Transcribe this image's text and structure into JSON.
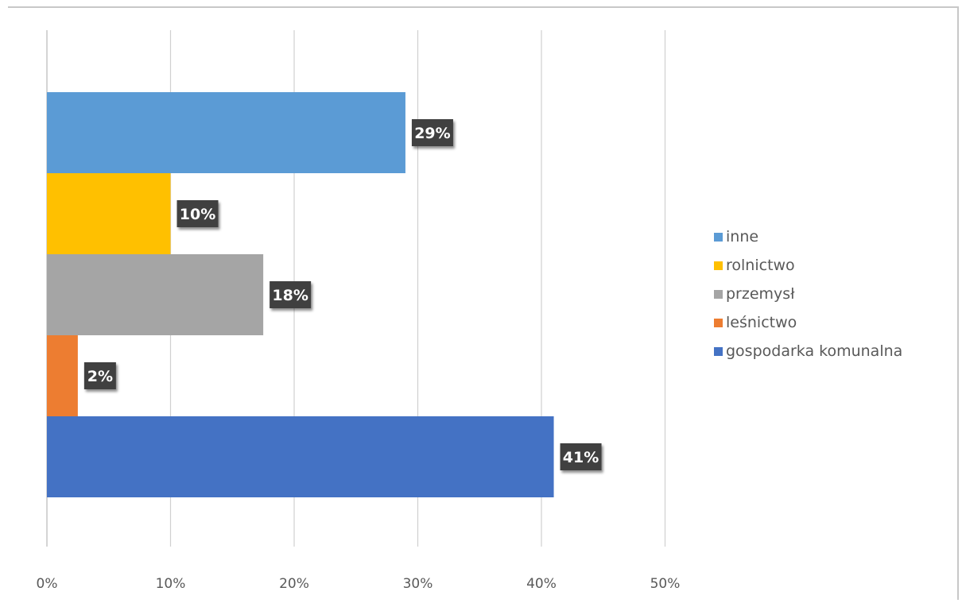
{
  "chart_data": {
    "type": "bar",
    "orientation": "horizontal",
    "categories": [
      "gospodarka komunalna",
      "leśnictwo",
      "przemysł",
      "rolnictwo",
      "inne"
    ],
    "values": [
      0.41,
      0.025,
      0.175,
      0.1,
      0.29
    ],
    "data_labels": [
      "41%",
      "2%",
      "18%",
      "10%",
      "29%"
    ],
    "colors": [
      "#4472C4",
      "#ED7D31",
      "#A5A5A5",
      "#FFC000",
      "#5B9BD5"
    ],
    "xlim": [
      0,
      0.5
    ],
    "x_ticks": [
      0,
      0.1,
      0.2,
      0.3,
      0.4,
      0.5
    ],
    "x_tick_labels": [
      "0%",
      "10%",
      "20%",
      "30%",
      "40%",
      "50%"
    ],
    "grid": "vertical",
    "legend": {
      "position": "right",
      "entries": [
        "inne",
        "rolnictwo",
        "przemysł",
        "leśnictwo",
        "gospodarka komunalna"
      ]
    }
  }
}
